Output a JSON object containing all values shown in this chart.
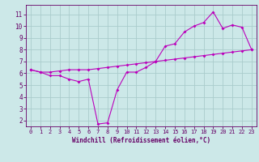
{
  "xlabel": "Windchill (Refroidissement éolien,°C)",
  "bg_color": "#cce8e8",
  "grid_color": "#aacccc",
  "line_color": "#bb00bb",
  "line1_x": [
    0,
    1,
    2,
    3,
    4,
    5,
    6,
    7,
    8,
    9,
    10,
    11,
    12,
    13,
    14,
    15,
    16,
    17,
    18,
    19,
    20,
    21,
    22,
    23
  ],
  "line1_y": [
    6.3,
    6.1,
    5.8,
    5.8,
    5.5,
    5.3,
    5.5,
    1.7,
    1.8,
    4.6,
    6.1,
    6.1,
    6.5,
    7.0,
    8.3,
    8.5,
    9.5,
    10.0,
    10.3,
    11.2,
    9.8,
    10.1,
    9.9,
    8.0
  ],
  "line2_x": [
    0,
    1,
    2,
    3,
    4,
    5,
    6,
    7,
    8,
    9,
    10,
    11,
    12,
    13,
    14,
    15,
    16,
    17,
    18,
    19,
    20,
    21,
    22,
    23
  ],
  "line2_y": [
    6.3,
    6.1,
    6.1,
    6.2,
    6.3,
    6.3,
    6.3,
    6.4,
    6.5,
    6.6,
    6.7,
    6.8,
    6.9,
    7.0,
    7.1,
    7.2,
    7.3,
    7.4,
    7.5,
    7.6,
    7.7,
    7.8,
    7.9,
    8.0
  ],
  "ylim": [
    1.5,
    11.8
  ],
  "yticks": [
    2,
    3,
    4,
    5,
    6,
    7,
    8,
    9,
    10,
    11
  ],
  "xlim": [
    -0.5,
    23.5
  ],
  "xticks": [
    0,
    1,
    2,
    3,
    4,
    5,
    6,
    7,
    8,
    9,
    10,
    11,
    12,
    13,
    14,
    15,
    16,
    17,
    18,
    19,
    20,
    21,
    22,
    23
  ],
  "tick_color": "#660066",
  "label_fontsize": 5.5,
  "tick_fontsize": 5.0
}
